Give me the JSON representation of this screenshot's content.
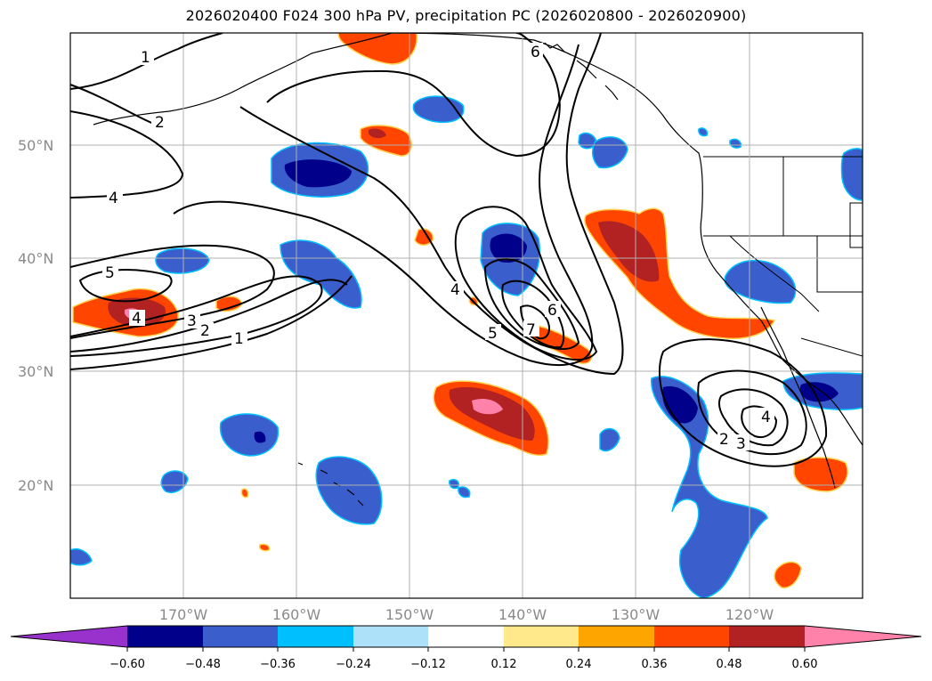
{
  "title": "2026020400 F024 300 hPa PV, precipitation PC (2026020800 - 2026020900)",
  "lat_labels": [
    "50°N",
    "40°N",
    "30°N",
    "20°N"
  ],
  "lon_labels": [
    "170°W",
    "160°W",
    "150°W",
    "140°W",
    "130°W",
    "120°W"
  ],
  "contour_labels": [
    "1",
    "2",
    "4",
    "5",
    "4",
    "3",
    "2",
    "1",
    "6",
    "4",
    "5",
    "6",
    "7",
    "4",
    "3",
    "2"
  ],
  "colorbar": {
    "ticks": [
      "−0.60",
      "−0.48",
      "−0.36",
      "−0.24",
      "−0.12",
      "0.12",
      "0.24",
      "0.36",
      "0.48",
      "0.60"
    ],
    "colors": [
      "#9932CC",
      "#00008B",
      "#3A5FCD",
      "#00BFFF",
      "#ADE1FA",
      "#FFFFFF",
      "#FFE98A",
      "#FFA500",
      "#FF4500",
      "#B22222",
      "#FF82AB"
    ]
  }
}
